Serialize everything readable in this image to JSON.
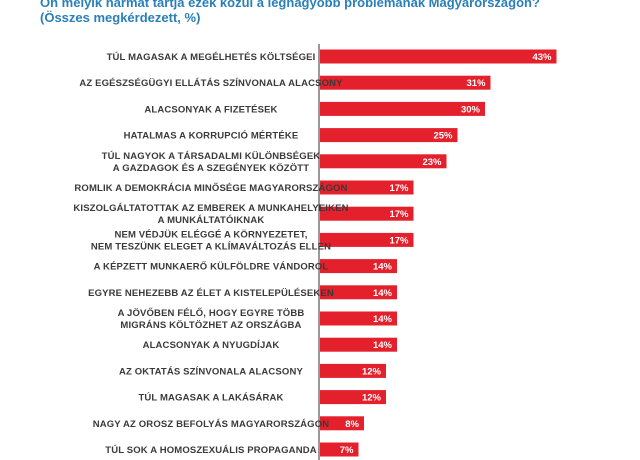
{
  "title": {
    "line1": "Ön melyik hármat tartja ezek közül a legnagyobb problémának Magyarországon?",
    "line2": "(Összes megkérdezett, %)"
  },
  "colors": {
    "bar": "#e3202b",
    "title": "#2a7fb8",
    "label": "#3a3a3a",
    "axis": "#333333"
  },
  "chart_data": {
    "type": "bar",
    "orientation": "horizontal",
    "unit": "%",
    "xlim": [
      0,
      48
    ],
    "grid": false,
    "categories": [
      [
        "TÚL MAGASAK A MEGÉLHETÉS KÖLTSÉGEI"
      ],
      [
        "AZ EGÉSZSÉGÜGYI ELLÁTÁS SZÍNVONALA ALACSONY"
      ],
      [
        "ALACSONYAK A FIZETÉSEK"
      ],
      [
        "HATALMAS A KORRUPCIÓ MÉRTÉKE"
      ],
      [
        "TÚL NAGYOK A TÁRSADALMI KÜLÖNBSÉGEK",
        "A GAZDAGOK ÉS A SZEGÉNYEK KÖZÖTT"
      ],
      [
        "ROMLIK A DEMOKRÁCIA MINŐSÉGE MAGYARORSZÁGON"
      ],
      [
        "KISZOLGÁLTATOTTAK AZ EMBEREK A MUNKAHELYEIKEN",
        "A MUNKÁLTATÓIKNAK"
      ],
      [
        "NEM VÉDJÜK ELÉGGÉ A KÖRNYEZETET,",
        "NEM TESZÜNK ELEGET A KLÍMAVÁLTOZÁS ELLEN"
      ],
      [
        "A KÉPZETT MUNKAERŐ KÜLFÖLDRE VÁNDOROL"
      ],
      [
        "EGYRE NEHEZEBB AZ ÉLET A KISTELEPÜLÉSEKEN"
      ],
      [
        "A JÖVŐBEN FÉLŐ, HOGY EGYRE TÖBB",
        "MIGRÁNS KÖLTÖZHET AZ ORSZÁGBA"
      ],
      [
        "ALACSONYAK A NYUGDÍJAK"
      ],
      [
        "AZ OKTATÁS SZÍNVONALA ALACSONY"
      ],
      [
        "TÚL MAGASAK A LAKÁSÁRAK"
      ],
      [
        "NAGY AZ OROSZ BEFOLYÁS MAGYARORSZÁGON"
      ],
      [
        "TÚL SOK A HOMOSZEXUÁLIS PROPAGANDA"
      ]
    ],
    "values": [
      43,
      31,
      30,
      25,
      23,
      17,
      17,
      17,
      14,
      14,
      14,
      14,
      12,
      12,
      8,
      7
    ],
    "value_labels": [
      "43%",
      "31%",
      "30%",
      "25%",
      "23%",
      "17%",
      "17%",
      "17%",
      "14%",
      "14%",
      "14%",
      "14%",
      "12%",
      "12%",
      "8%",
      "7%"
    ]
  }
}
